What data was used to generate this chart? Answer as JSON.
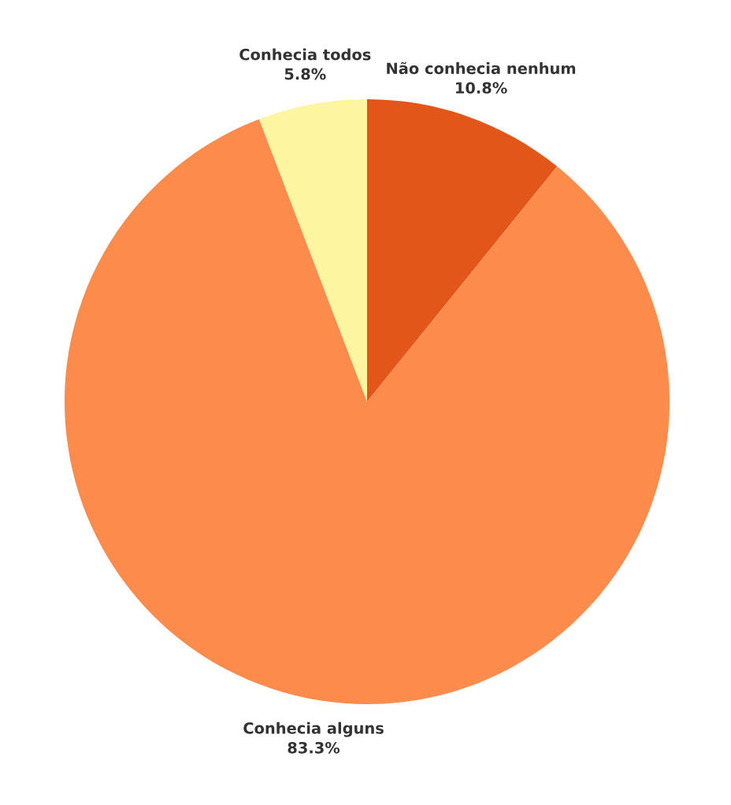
{
  "chart_data": {
    "type": "pie",
    "categories": [
      "Não conhecia nenhum",
      "Conhecia alguns",
      "Conhecia todos"
    ],
    "values": [
      10.8,
      83.3,
      5.8
    ],
    "value_labels": [
      "10.8%",
      "83.3%",
      "5.8%"
    ],
    "colors": [
      "#e2561a",
      "#fd8b4b",
      "#fdf5a0"
    ]
  }
}
